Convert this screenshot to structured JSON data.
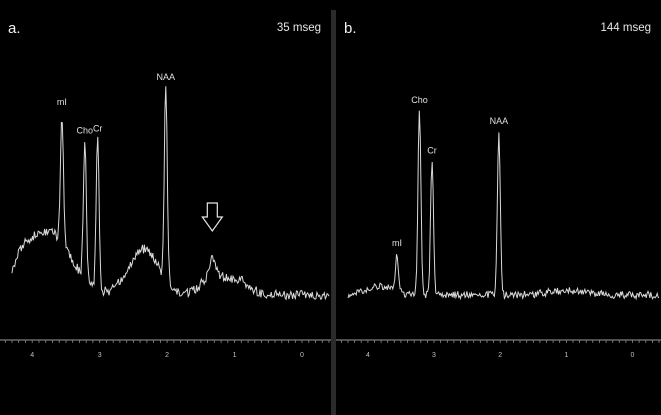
{
  "chart_data": [
    {
      "type": "line",
      "panel_label": "a.",
      "echo_time": "35 mseg",
      "x_ticks": [
        "4",
        "3",
        "2",
        "1",
        "0"
      ],
      "x_range": [
        4.3,
        -0.4
      ],
      "line_color": "#d9d9d9",
      "peaks": [
        {
          "label": "mI",
          "ppm": 3.56,
          "height": 0.62
        },
        {
          "label": "Cho",
          "ppm": 3.22,
          "height": 0.66
        },
        {
          "label": "Cr",
          "ppm": 3.03,
          "height": 0.72
        },
        {
          "label": "NAA",
          "ppm": 2.02,
          "height": 0.92
        }
      ],
      "annotation": {
        "type": "arrow-down",
        "ppm": 1.33
      }
    },
    {
      "type": "line",
      "panel_label": "b.",
      "echo_time": "144 mseg",
      "x_ticks": [
        "4",
        "3",
        "2",
        "1",
        "0"
      ],
      "x_range": [
        4.3,
        -0.4
      ],
      "line_color": "#d9d9d9",
      "peaks": [
        {
          "label": "mI",
          "ppm": 3.56,
          "height": 0.18
        },
        {
          "label": "Cho",
          "ppm": 3.22,
          "height": 0.88
        },
        {
          "label": "Cr",
          "ppm": 3.03,
          "height": 0.64
        },
        {
          "label": "NAA",
          "ppm": 2.02,
          "height": 0.78
        }
      ]
    }
  ]
}
